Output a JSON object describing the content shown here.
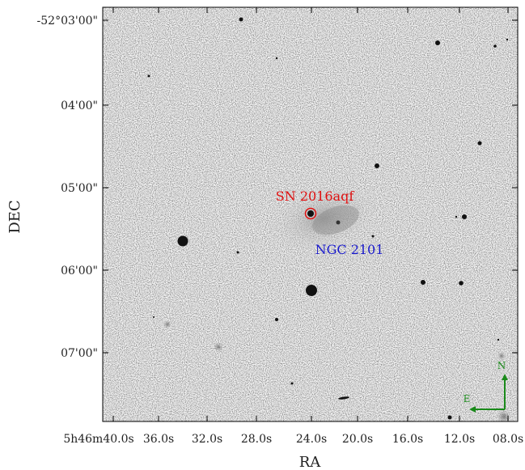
{
  "figure": {
    "axes": {
      "xlabel": "RA",
      "ylabel": "DEC",
      "xticks": [
        "5h46m40.0s",
        "36.0s",
        "32.0s",
        "28.0s",
        "24.0s",
        "20.0s",
        "16.0s",
        "12.0s",
        "08.0s"
      ],
      "yticks": [
        "-52°03'00\"",
        "04'00\"",
        "05'00\"",
        "06'00\"",
        "07'00\""
      ]
    },
    "annotations": {
      "sn_label": "SN 2016aqf",
      "galaxy_label": "NGC 2101"
    },
    "compass": {
      "north": "N",
      "east": "E"
    },
    "colors": {
      "sn": "#e01010",
      "galaxy": "#1a1acc",
      "compass": "#1a8a1a"
    }
  }
}
